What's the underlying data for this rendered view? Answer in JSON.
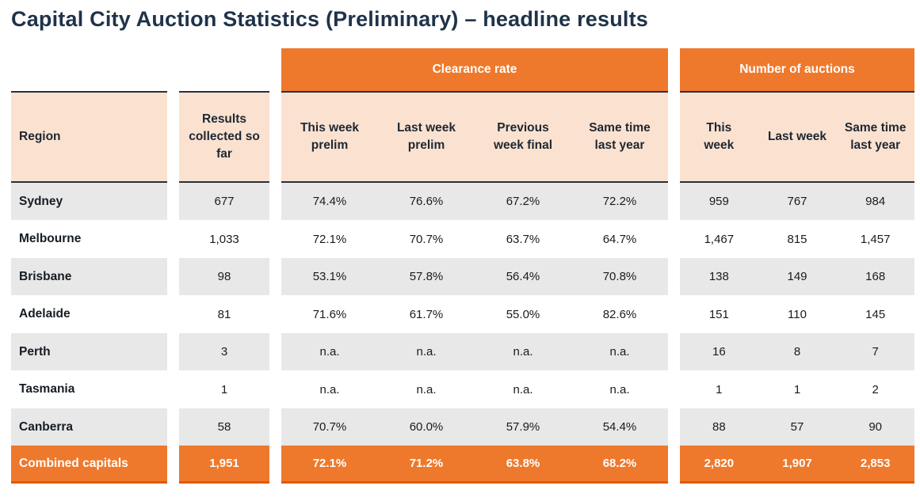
{
  "page": {
    "title": "Capital City Auction Statistics (Preliminary) – headline results"
  },
  "colors": {
    "accent_orange": "#ee792c",
    "accent_orange_dark_border": "#e05a0c",
    "subheader_peach": "#fbe2d0",
    "row_grey": "#e8e8e8",
    "title_navy": "#1f3349",
    "rule_dark": "#27313b"
  },
  "chart_data": {
    "type": "table",
    "title": "Capital City Auction Statistics (Preliminary) – headline results",
    "column_groups": [
      {
        "label": "",
        "columns": [
          "Region"
        ]
      },
      {
        "label": "",
        "columns": [
          "Results collected so far"
        ]
      },
      {
        "label": "Clearance rate",
        "columns": [
          "This week prelim",
          "Last week prelim",
          "Previous week final",
          "Same time last year"
        ]
      },
      {
        "label": "Number of auctions",
        "columns": [
          "This week",
          "Last week",
          "Same time last year"
        ]
      }
    ],
    "rows": [
      {
        "region": "Sydney",
        "results": "677",
        "clearance": [
          "74.4%",
          "76.6%",
          "67.2%",
          "72.2%"
        ],
        "auctions": [
          "959",
          "767",
          "984"
        ],
        "highlight": false
      },
      {
        "region": "Melbourne",
        "results": "1,033",
        "clearance": [
          "72.1%",
          "70.7%",
          "63.7%",
          "64.7%"
        ],
        "auctions": [
          "1,467",
          "815",
          "1,457"
        ],
        "highlight": false
      },
      {
        "region": "Brisbane",
        "results": "98",
        "clearance": [
          "53.1%",
          "57.8%",
          "56.4%",
          "70.8%"
        ],
        "auctions": [
          "138",
          "149",
          "168"
        ],
        "highlight": false
      },
      {
        "region": "Adelaide",
        "results": "81",
        "clearance": [
          "71.6%",
          "61.7%",
          "55.0%",
          "82.6%"
        ],
        "auctions": [
          "151",
          "110",
          "145"
        ],
        "highlight": false
      },
      {
        "region": "Perth",
        "results": "3",
        "clearance": [
          "n.a.",
          "n.a.",
          "n.a.",
          "n.a."
        ],
        "auctions": [
          "16",
          "8",
          "7"
        ],
        "highlight": false
      },
      {
        "region": "Tasmania",
        "results": "1",
        "clearance": [
          "n.a.",
          "n.a.",
          "n.a.",
          "n.a."
        ],
        "auctions": [
          "1",
          "1",
          "2"
        ],
        "highlight": false
      },
      {
        "region": "Canberra",
        "results": "58",
        "clearance": [
          "70.7%",
          "60.0%",
          "57.9%",
          "54.4%"
        ],
        "auctions": [
          "88",
          "57",
          "90"
        ],
        "highlight": false
      },
      {
        "region": "Combined capitals",
        "results": "1,951",
        "clearance": [
          "72.1%",
          "71.2%",
          "63.8%",
          "68.2%"
        ],
        "auctions": [
          "2,820",
          "1,907",
          "2,853"
        ],
        "highlight": true
      }
    ]
  }
}
